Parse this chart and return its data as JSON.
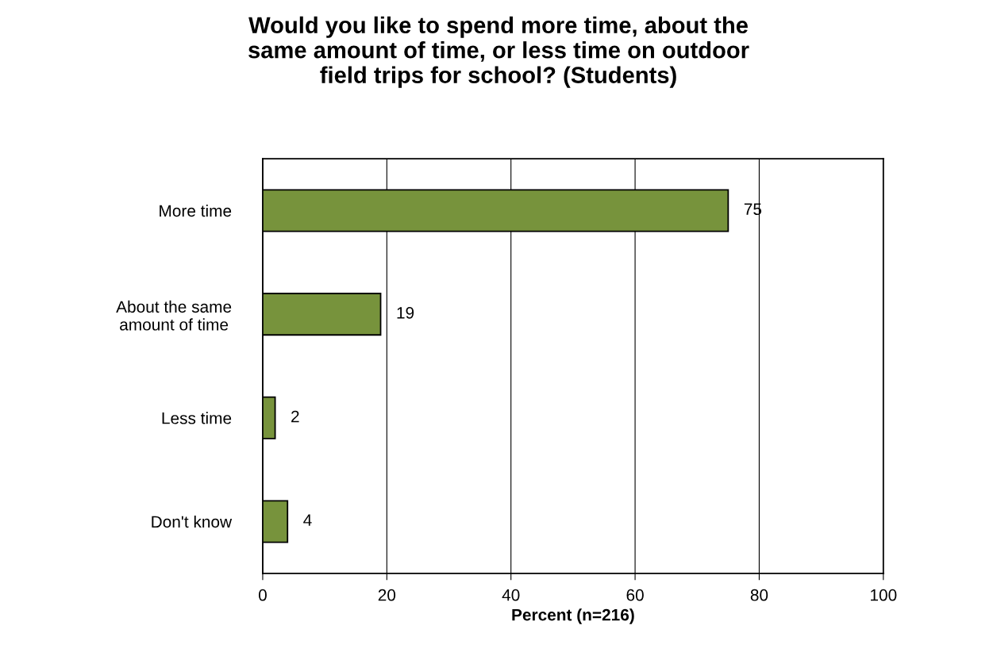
{
  "chart_data": {
    "type": "bar",
    "orientation": "horizontal",
    "title": "Would you like to spend more time, about the\nsame amount of time, or less time on outdoor\nfield trips for school? (Students)",
    "xlabel": "Percent (n=216)",
    "categories": [
      "More time",
      "About the same\namount of time",
      "Less time",
      "Don't know"
    ],
    "values": [
      75,
      19,
      2,
      4
    ],
    "color": "#77933c",
    "xlim": [
      0,
      100
    ],
    "xticks": [
      0,
      20,
      40,
      60,
      80,
      100
    ],
    "grid": "x",
    "data_labels": true,
    "legend": false
  }
}
